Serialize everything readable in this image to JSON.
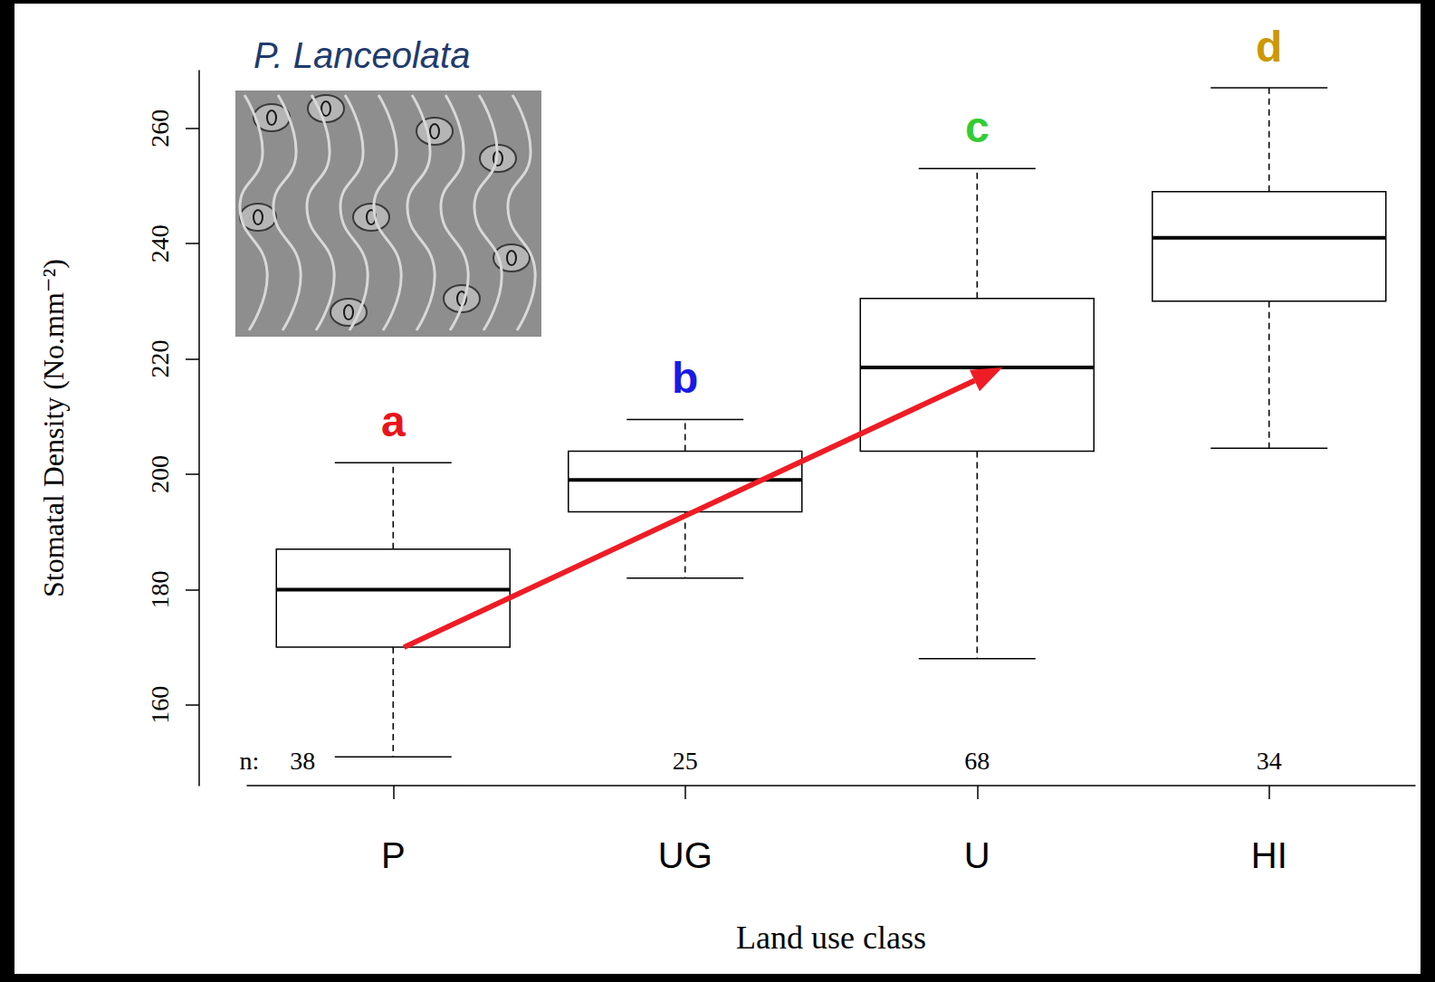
{
  "chart_data": {
    "type": "boxplot",
    "title": "P. Lanceolata",
    "x_label": "Land use class",
    "y_label": "Stomatal Density (No.mm⁻²)",
    "categories": [
      "P",
      "UG",
      "U",
      "HI"
    ],
    "boxes": [
      {
        "min": 151,
        "q1": 170,
        "median": 180,
        "q3": 187,
        "max": 202
      },
      {
        "min": 182,
        "q1": 193.5,
        "median": 199,
        "q3": 204,
        "max": 209.5
      },
      {
        "min": 168,
        "q1": 204,
        "median": 218.5,
        "q3": 230.5,
        "max": 253
      },
      {
        "min": 204.5,
        "q1": 230,
        "median": 241,
        "q3": 249,
        "max": 267
      }
    ],
    "n_label": "n:",
    "n": [
      38,
      25,
      68,
      34
    ],
    "group_letters": [
      "a",
      "b",
      "c",
      "d"
    ],
    "group_letter_colors": [
      "#e8141b",
      "#1a1ae6",
      "#33cc33",
      "#cc9900"
    ],
    "ylim": [
      146,
      270
    ],
    "yticks": [
      160,
      180,
      200,
      220,
      240,
      260
    ],
    "grid": false
  }
}
